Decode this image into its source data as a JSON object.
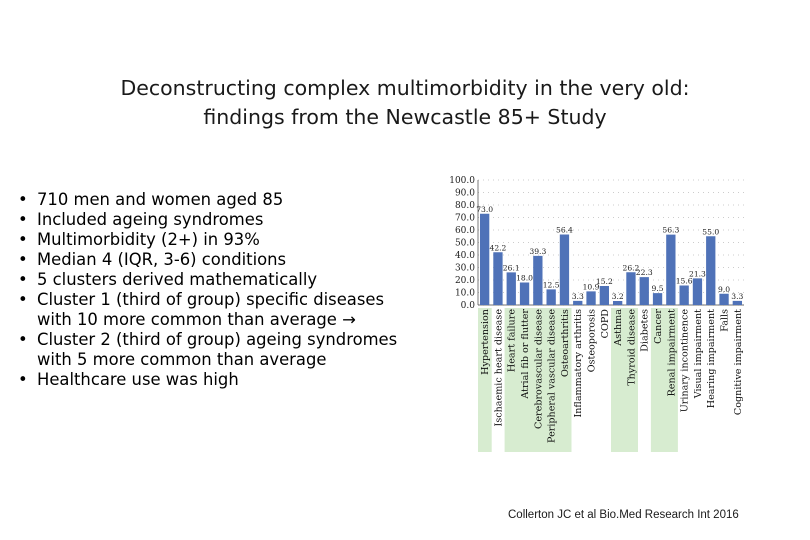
{
  "slide": {
    "title_line1": "Deconstructing complex multimorbidity in the very old:",
    "title_line2": "findings from the Newcastle 85+ Study",
    "bullets": [
      {
        "text": "710 men and women aged 85",
        "cont": ""
      },
      {
        "text": "Included ageing syndromes",
        "cont": ""
      },
      {
        "text": "Multimorbidity (2+) in 93%",
        "cont": ""
      },
      {
        "text": "Median 4 (IQR, 3-6) conditions",
        "cont": ""
      },
      {
        "text": "5 clusters derived mathematically",
        "cont": ""
      },
      {
        "text": "Cluster 1 (third of group) specific diseases",
        "cont": "with 10 more common than average  →"
      },
      {
        "text": "Cluster 2 (third of group) ageing syndromes",
        "cont": "with 5 more common than average"
      },
      {
        "text": "Healthcare use was high",
        "cont": ""
      }
    ],
    "bullet_glyph": "•",
    "citation": "Collerton JC et al Bio.Med Research Int 2016"
  },
  "chart_data": {
    "type": "bar",
    "categories": [
      "Hypertension",
      "Ischaemic heart disease",
      "Heart failure",
      "Atrial fib or flutter",
      "Cerebrovascular disease",
      "Peripheral vascular disease",
      "Osteoarthritis",
      "Inflammatory arthritis",
      "Osteoporosis",
      "COPD",
      "Asthma",
      "Thyroid disease",
      "Diabetes",
      "Cancer",
      "Renal impairment",
      "Urinary incontinence",
      "Visual impairment",
      "Hearing impairment",
      "Falls",
      "Cognitive impairment"
    ],
    "values": [
      73.0,
      42.2,
      26.1,
      18.0,
      39.3,
      12.5,
      56.4,
      3.3,
      10.9,
      15.2,
      3.2,
      26.2,
      22.3,
      9.5,
      56.3,
      15.6,
      21.3,
      55.0,
      9.0,
      3.3
    ],
    "value_labels": [
      "73.0",
      "42.2",
      "26.1",
      "18.0",
      "39.3",
      "12.5",
      "56.4",
      "3.3",
      "10.9",
      "15.2",
      "3.2",
      "26.2",
      "22.3",
      "9.5",
      "56.3",
      "15.6",
      "21.3",
      "55.0",
      "9.0",
      "3.3"
    ],
    "highlighted": [
      true,
      false,
      true,
      true,
      true,
      true,
      true,
      false,
      false,
      false,
      true,
      true,
      false,
      true,
      true,
      false,
      false,
      false,
      false,
      false
    ],
    "yticks": [
      "100.0",
      "90.0",
      "80.0",
      "70.0",
      "60.0",
      "50.0",
      "40.0",
      "30.0",
      "20.0",
      "10.0",
      "0.0"
    ],
    "ylim": [
      0,
      100
    ],
    "title": "",
    "xlabel": "",
    "ylabel": "",
    "grid": "dotted horizontal",
    "bar_color": "#4f72b8",
    "highlight_color": "#d7ecd0"
  }
}
